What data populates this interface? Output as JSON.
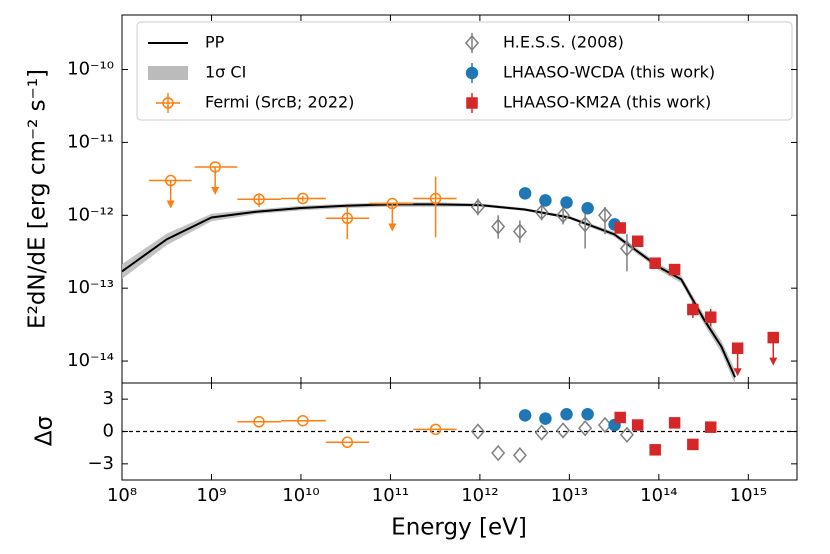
{
  "chart_data": [
    {
      "type": "errorbar",
      "ylabel": "E²dN/dE [erg cm⁻² s⁻¹]",
      "log_x": true,
      "log_y": true,
      "xlim": [
        100000000.0,
        3500000000000000.0
      ],
      "ylim": [
        5e-15,
        5.6e-10
      ],
      "yticks": [
        {
          "value": 1e-10,
          "label": "10⁻¹⁰"
        },
        {
          "value": 1e-11,
          "label": "10⁻¹¹"
        },
        {
          "value": 1e-12,
          "label": "10⁻¹²"
        },
        {
          "value": 1e-13,
          "label": "10⁻¹³"
        },
        {
          "value": 1e-14,
          "label": "10⁻¹⁴"
        }
      ],
      "legend": "upper left",
      "series": [
        {
          "name": "PP",
          "kind": "line",
          "color": "#000000",
          "x": [
            100000000.0,
            316000000.0,
            1000000000.0,
            3160000000.0,
            10000000000.0,
            31600000000.0,
            100000000000.0,
            316000000000.0,
            1000000000000.0,
            3160000000000.0,
            10000000000000.0,
            31600000000000.0,
            100000000000000.0,
            178000000000000.0,
            316000000000000.0,
            500000000000000.0,
            710000000000000.0
          ],
          "values": [
            1.7e-13,
            4.68e-13,
            9.33e-13,
            1.12e-12,
            1.26e-12,
            1.35e-12,
            1.41e-12,
            1.41e-12,
            1.38e-12,
            1.2e-12,
            9.3e-13,
            5.5e-13,
            1.95e-13,
            1.32e-13,
            3.8e-14,
            1.58e-14,
            6e-15
          ]
        },
        {
          "name": "1σ CI",
          "kind": "band",
          "color": "#bbbbbb",
          "upper": [
            2.14e-13,
            5.6e-13,
            1.05e-12,
            1.2e-12,
            1.35e-12,
            1.44e-12,
            1.51e-12,
            1.51e-12,
            1.45e-12,
            1.26e-12,
            9.8e-13,
            5.9e-13,
            2.15e-13,
            1.48e-13,
            4.4e-14,
            1.9e-14,
            7.6e-15
          ],
          "lower": [
            1.34e-13,
            3.9e-13,
            8.3e-13,
            1.04e-12,
            1.17e-12,
            1.26e-12,
            1.31e-12,
            1.31e-12,
            1.32e-12,
            1.15e-12,
            8.9e-13,
            5.1e-13,
            1.77e-13,
            1.18e-13,
            3.3e-14,
            1.31e-14,
            4.8e-15
          ]
        },
        {
          "name": "Fermi (SrcB; 2022)",
          "kind": "points",
          "marker": "circle-open",
          "color": "#ff7f0e",
          "x": [
            350000000.0,
            1100000000.0,
            3400000000.0,
            10500000000.0,
            33000000000.0,
            105000000000.0,
            320000000000.0
          ],
          "values": [
            3e-12,
            4.6e-12,
            1.66e-12,
            1.7e-12,
            9.1e-13,
            1.45e-12,
            1.7e-12
          ],
          "ylow": [
            null,
            null,
            1.3e-12,
            1.55e-12,
            4.7e-13,
            null,
            5e-13
          ],
          "yhigh": [
            null,
            null,
            2e-12,
            1.85e-12,
            1.32e-12,
            null,
            3.4e-12
          ],
          "xlow": [
            200000000.0,
            650000000.0,
            1950000000.0,
            6000000000.0,
            19000000000.0,
            58000000000.0,
            180000000000.0
          ],
          "xhigh": [
            600000000.0,
            1950000000.0,
            6000000000.0,
            19000000000.0,
            58000000000.0,
            180000000000.0,
            550000000000.0
          ],
          "upper_limit": [
            true,
            true,
            false,
            false,
            false,
            true,
            false
          ]
        },
        {
          "name": "H.E.S.S. (2008)",
          "kind": "points",
          "marker": "diamond-open",
          "color": "#7f7f7f",
          "x": [
            950000000000.0,
            1600000000000.0,
            2800000000000.0,
            4900000000000.0,
            8500000000000.0,
            15000000000000.0,
            25000000000000.0,
            44000000000000.0
          ],
          "values": [
            1.3e-12,
            7e-13,
            6e-13,
            1.1e-12,
            1e-12,
            7.5e-13,
            1e-12,
            3.5e-13
          ],
          "ylow": [
            1e-12,
            4.8e-13,
            4.2e-13,
            8.5e-13,
            7.5e-13,
            3.5e-13,
            5.5e-13,
            1.7e-13
          ],
          "yhigh": [
            1.7e-12,
            1e-12,
            8.5e-13,
            1.4e-12,
            1.3e-12,
            1.15e-12,
            1.3e-12,
            5.5e-13
          ]
        },
        {
          "name": "LHAASO-WCDA (this work)",
          "kind": "points",
          "marker": "circle",
          "color": "#1f77b4",
          "x": [
            3200000000000.0,
            5400000000000.0,
            9300000000000.0,
            16000000000000.0,
            32000000000000.0
          ],
          "values": [
            2e-12,
            1.6e-12,
            1.5e-12,
            1.25e-12,
            7.5e-13
          ],
          "ylow": [
            1.65e-12,
            1.4e-12,
            1.32e-12,
            1.1e-12,
            6.6e-13
          ],
          "yhigh": [
            2.4e-12,
            1.85e-12,
            1.7e-12,
            1.4e-12,
            8.5e-13
          ]
        },
        {
          "name": "LHAASO-KM2A (this work)",
          "kind": "points",
          "marker": "square",
          "color": "#d62728",
          "x": [
            37000000000000.0,
            58000000000000.0,
            91000000000000.0,
            150000000000000.0,
            240000000000000.0,
            380000000000000.0,
            760000000000000.0,
            1900000000000000.0
          ],
          "values": [
            6.7e-13,
            4.4e-13,
            2.2e-13,
            1.8e-13,
            5.1e-14,
            4e-14,
            1.5e-14,
            2.1e-14
          ],
          "ylow": [
            6e-13,
            3.9e-13,
            1.9e-13,
            1.55e-13,
            3.9e-14,
            3e-14,
            null,
            null
          ],
          "yhigh": [
            7.5e-13,
            5e-13,
            2.5e-13,
            2.05e-13,
            6.5e-14,
            5.2e-14,
            null,
            null
          ],
          "upper_limit": [
            false,
            false,
            false,
            false,
            false,
            false,
            true,
            true
          ]
        }
      ]
    },
    {
      "type": "errorbar",
      "xlabel": "Energy [eV]",
      "ylabel": "Δσ",
      "log_x": true,
      "log_y": false,
      "xlim": [
        100000000.0,
        3500000000000000.0
      ],
      "xticks": [
        {
          "value": 100000000.0,
          "label": "10⁸"
        },
        {
          "value": 1000000000.0,
          "label": "10⁹"
        },
        {
          "value": 10000000000.0,
          "label": "10¹⁰"
        },
        {
          "value": 100000000000.0,
          "label": "10¹¹"
        },
        {
          "value": 1000000000000.0,
          "label": "10¹²"
        },
        {
          "value": 10000000000000.0,
          "label": "10¹³"
        },
        {
          "value": 100000000000000.0,
          "label": "10¹⁴"
        },
        {
          "value": 1000000000000000.0,
          "label": "10¹⁵"
        }
      ],
      "ylim": [
        -4.5,
        4.5
      ],
      "yticks": [
        {
          "value": -3,
          "label": "−3"
        },
        0,
        3
      ],
      "hline": 0,
      "series": [
        {
          "kind": "points",
          "marker": "circle-open",
          "color": "#ff7f0e",
          "x": [
            3400000000.0,
            10500000000.0,
            33000000000.0,
            320000000000.0
          ],
          "values": [
            0.9,
            1.0,
            -1.0,
            0.2
          ],
          "xlow": [
            1950000000.0,
            6000000000.0,
            19000000000.0,
            180000000000.0
          ],
          "xhigh": [
            6000000000.0,
            19000000000.0,
            58000000000.0,
            550000000000.0
          ]
        },
        {
          "kind": "points",
          "marker": "diamond-open",
          "color": "#7f7f7f",
          "x": [
            950000000000.0,
            1600000000000.0,
            2800000000000.0,
            4900000000000.0,
            8500000000000.0,
            15000000000000.0,
            25000000000000.0,
            44000000000000.0
          ],
          "values": [
            0,
            -2.0,
            -2.2,
            -0.1,
            0.1,
            0.3,
            0.6,
            -0.3
          ]
        },
        {
          "kind": "points",
          "marker": "circle",
          "color": "#1f77b4",
          "x": [
            3200000000000.0,
            5400000000000.0,
            9300000000000.0,
            16000000000000.0,
            32000000000000.0
          ],
          "values": [
            1.5,
            1.2,
            1.6,
            1.6,
            0.6
          ]
        },
        {
          "kind": "points",
          "marker": "square",
          "color": "#d62728",
          "x": [
            37000000000000.0,
            58000000000000.0,
            91000000000000.0,
            150000000000000.0,
            240000000000000.0,
            380000000000000.0
          ],
          "values": [
            1.3,
            0.6,
            -1.7,
            0.8,
            -1.2,
            0.4
          ]
        }
      ]
    }
  ]
}
